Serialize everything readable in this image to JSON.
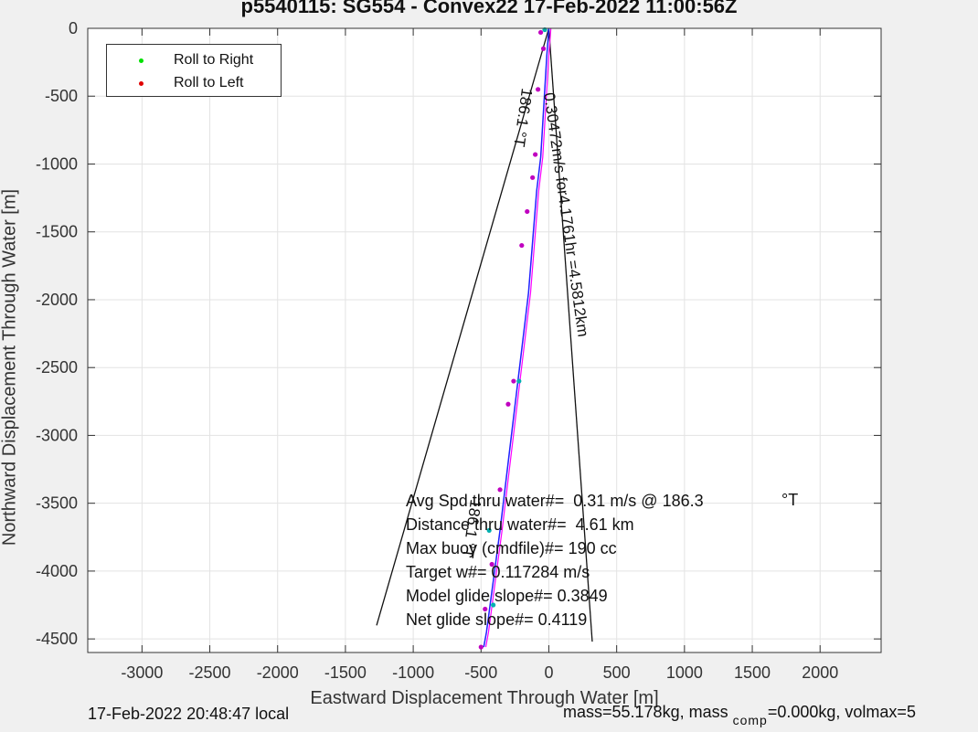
{
  "chart_data": {
    "type": "scatter",
    "title": "p5540115: SG554 - Convex22 17-Feb-2022 11:00:56Z",
    "xlabel": "Eastward Displacement Through Water [m]",
    "ylabel": "Northward Displacement Through Water [m]",
    "xlim": [
      -3400,
      2450
    ],
    "ylim": [
      -4600,
      0
    ],
    "x_ticks": [
      -3000,
      -2500,
      -2000,
      -1500,
      -1000,
      -500,
      0,
      500,
      1000,
      1500,
      2000
    ],
    "y_ticks": [
      0,
      -500,
      -1000,
      -1500,
      -2000,
      -2500,
      -3000,
      -3500,
      -4000,
      -4500
    ],
    "grid": true,
    "legend_position": "top-left",
    "legend": [
      {
        "name": "Roll to Right",
        "color": "#00e000"
      },
      {
        "name": "Roll to Left",
        "color": "#e00000"
      }
    ],
    "track_x": [
      0,
      -15,
      -30,
      -45,
      -60,
      -90,
      -110,
      -130,
      -150,
      -180,
      -210,
      -240,
      -270,
      -300,
      -330,
      -360,
      -380,
      -400,
      -420,
      -440,
      -460,
      -480
    ],
    "track_y": [
      0,
      -200,
      -450,
      -700,
      -950,
      -1200,
      -1450,
      -1700,
      -1950,
      -2200,
      -2450,
      -2700,
      -2950,
      -3200,
      -3450,
      -3700,
      -3850,
      -4000,
      -4150,
      -4300,
      -4450,
      -4560
    ],
    "heading_lines": [
      {
        "x": [
          0,
          -1270
        ],
        "y": [
          0,
          -4400
        ]
      },
      {
        "x": [
          0,
          320
        ],
        "y": [
          0,
          -4520
        ]
      }
    ],
    "roll_right_points": {
      "x": [
        -30,
        -220,
        -440,
        -410
      ],
      "y": [
        -10,
        -2600,
        -3700,
        -4250
      ]
    },
    "roll_left_points": {
      "x": [
        -60,
        -40,
        -80,
        -100,
        -120,
        -160,
        -200,
        -260,
        -300,
        -360,
        -420,
        -470,
        -500
      ],
      "y": [
        -30,
        -150,
        -450,
        -930,
        -1100,
        -1350,
        -1600,
        -2600,
        -2770,
        -3400,
        -3950,
        -4280,
        -4560
      ]
    },
    "annotations": {
      "speed_label": "0.30472m/s for4.1761hr =4.5812km",
      "heading_label": "186.1 °T",
      "heading_label_2": "186.1 °T"
    },
    "colors": {
      "track_blue": "#2020ff",
      "track_magenta": "#ff00ff",
      "axes_bg": "#ffffff",
      "figure_bg": "#f0f0f0"
    }
  },
  "stats": [
    "Avg Spd thru water#=  0.31 m/s @ 186.3",
    "Distance thru water#=  4.61 km",
    "Max buoy (cmdfile)#= 190 cc",
    "Target w#= 0.117284 m/s",
    "Model glide slope#= 0.3849",
    "Net glide slope#= 0.4119"
  ],
  "deg_unit": "°T",
  "footer": {
    "local_time": "17-Feb-2022 20:48:47 local",
    "mass_text": "mass=55.178kg, mass",
    "mass_sub": "comp",
    "mass_rest": "=0.000kg, volmax=5"
  }
}
